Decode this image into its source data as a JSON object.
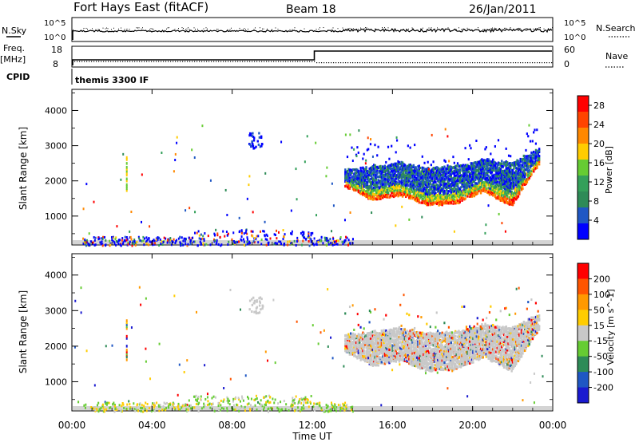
{
  "header": {
    "station": "Fort Hays East (fitACF)",
    "beam": "Beam 18",
    "date": "26/Jan/2011"
  },
  "top_panels": {
    "nsky": {
      "label": "N.Sky",
      "ticks": [
        "10^5",
        "10^0"
      ]
    },
    "nsearch": {
      "label": "N.Search",
      "ticks": [
        "10^5",
        "10^0"
      ]
    },
    "freq": {
      "label_line1": "Freq.",
      "label_line2": "[MHz]",
      "ticks": [
        "18",
        "8"
      ]
    },
    "nave": {
      "label": "Nave",
      "ticks": [
        "60",
        "0"
      ]
    },
    "cpid": {
      "label": "CPID",
      "value": "themis 3300 IF"
    }
  },
  "x_axis": {
    "label": "Time UT",
    "ticks": [
      "00:00",
      "04:00",
      "08:00",
      "12:00",
      "16:00",
      "20:00",
      "00:00"
    ]
  },
  "colors": {
    "power": [
      "#0000ff",
      "#1f57c4",
      "#2e8b57",
      "#34a05a",
      "#66cc33",
      "#ffcc00",
      "#ff8800",
      "#ff4400",
      "#ff0000"
    ],
    "velocity": [
      "#1a1ad0",
      "#1f57c4",
      "#2e8b57",
      "#66cc33",
      "#c8c8c8",
      "#ffcc00",
      "#ff9900",
      "#ff5500",
      "#ff0000"
    ],
    "ground": "#a9a9a9"
  },
  "chart_data": [
    {
      "type": "heatmap",
      "ylabel": "Slant Range [km]",
      "ylim": [
        180,
        4600
      ],
      "yticks": [
        1000,
        2000,
        3000,
        4000
      ],
      "xlim": [
        0,
        24
      ],
      "colorbar": {
        "label": "Power [dB]",
        "ticks": [
          4,
          8,
          12,
          16,
          20,
          24,
          28
        ],
        "range": [
          0,
          30
        ]
      },
      "echo_region": {
        "start_hour": 13.6,
        "end_hour": 23.3,
        "lower_edge_km": [
          1850,
          1450,
          1600,
          1300,
          1350,
          1700,
          1300,
          2500
        ],
        "upper_edge_km": [
          2300,
          2400,
          2500,
          2350,
          2400,
          2600,
          2500,
          2900
        ]
      },
      "patches": [
        {
          "hour": 9.0,
          "range_km": 3100,
          "label": ""
        },
        {
          "hour": 2.7,
          "range_km": 2300,
          "label": ""
        }
      ]
    },
    {
      "type": "heatmap",
      "ylabel": "Slant Range [km]",
      "ylim": [
        180,
        4600
      ],
      "yticks": [
        1000,
        2000,
        3000,
        4000
      ],
      "xlim": [
        0,
        24
      ],
      "colorbar": {
        "label": "Velocity [m s^-1]",
        "ticks": [
          "200",
          "100",
          "50",
          "15",
          "-15",
          "-50",
          "-100",
          "-200"
        ]
      },
      "echo_region": {
        "start_hour": 13.6,
        "end_hour": 23.3,
        "lower_edge_km": [
          1850,
          1450,
          1600,
          1300,
          1350,
          1700,
          1300,
          2500
        ],
        "upper_edge_km": [
          2300,
          2400,
          2500,
          2350,
          2400,
          2600,
          2500,
          2900
        ]
      }
    }
  ]
}
